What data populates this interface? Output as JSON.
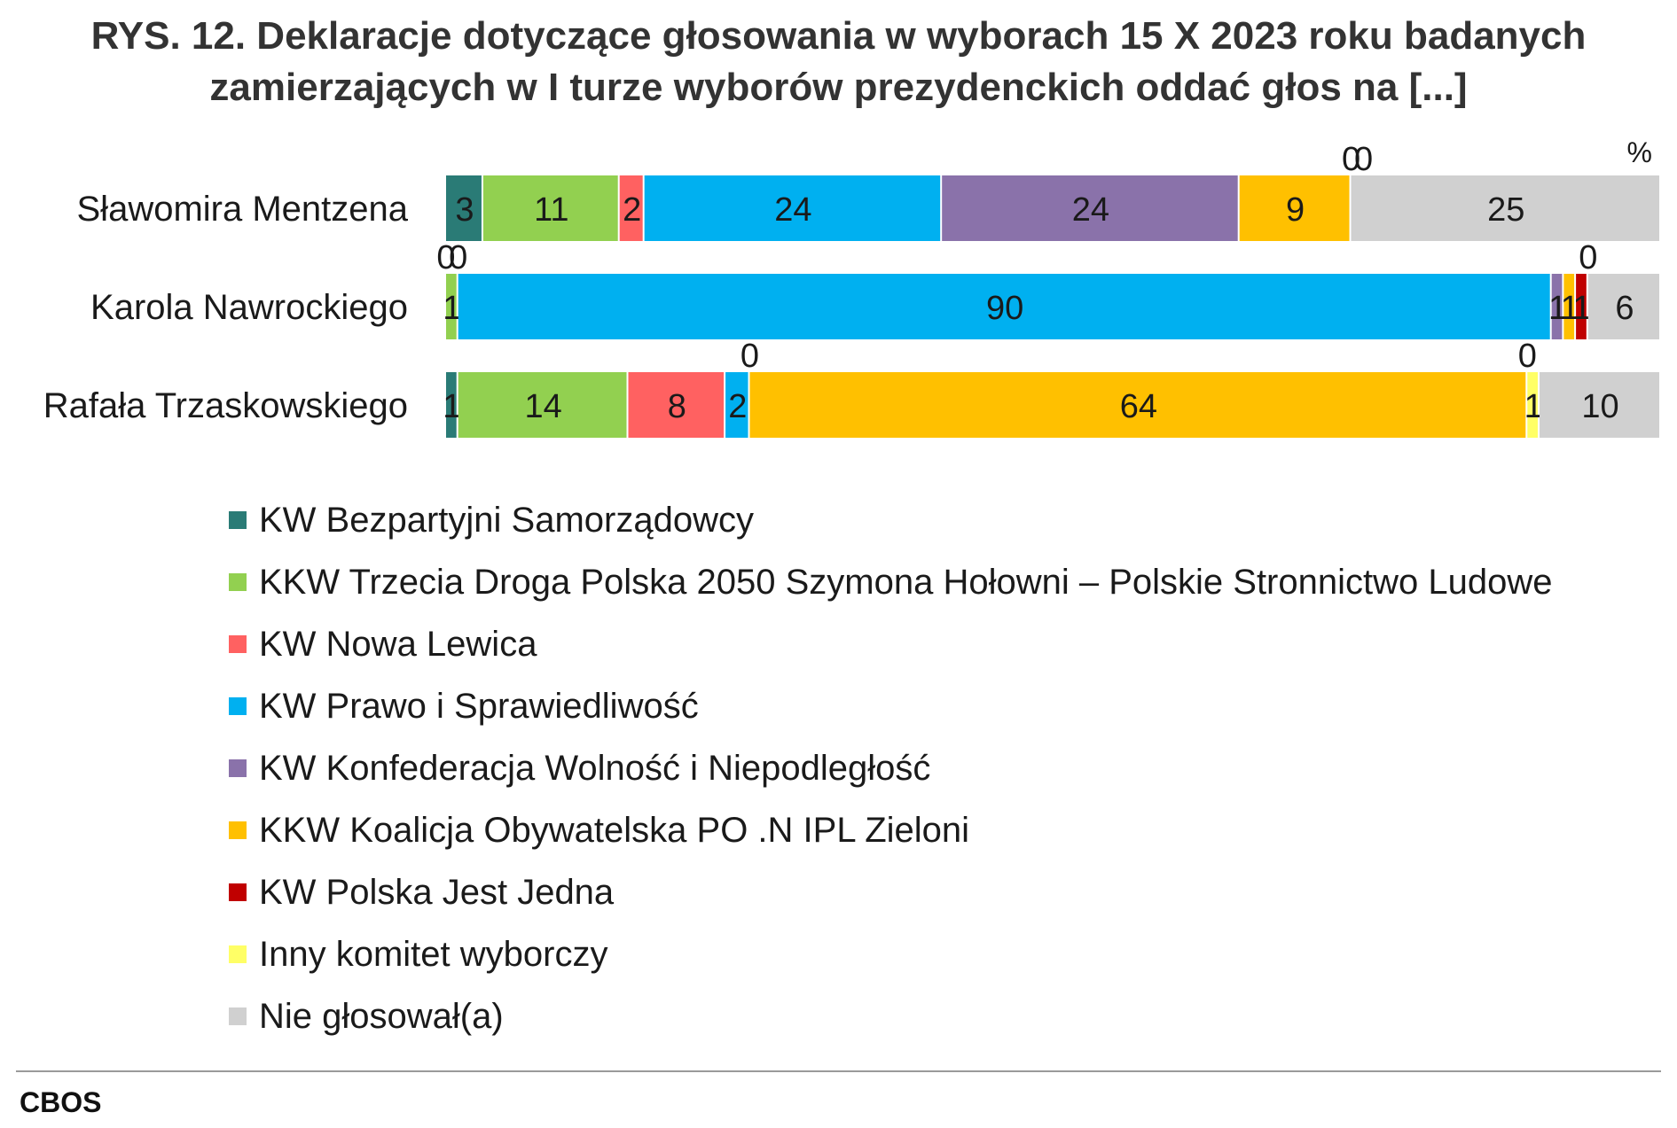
{
  "title": {
    "line1": "RYS. 12. Deklaracje dotyczące głosowania w wyborach 15 X 2023 roku badanych",
    "line2": "zamierzających w I turze wyborów prezydenckich oddać głos na [...]"
  },
  "source": "CBOS",
  "chart_data": {
    "type": "bar",
    "orientation": "horizontal",
    "stacked": true,
    "unit_label": "%",
    "xlim": [
      0,
      100
    ],
    "grid": false,
    "legend_position": "bottom",
    "categories": [
      "Sławomira Mentzena",
      "Karola Nawrockiego",
      "Rafała Trzaskowskiego"
    ],
    "series": [
      {
        "name": "KW Bezpartyjni Samorządowcy",
        "color": "#2a7b76",
        "values": [
          3,
          0,
          1
        ]
      },
      {
        "name": "KKW Trzecia Droga Polska 2050 Szymona Hołowni  – Polskie Stronnictwo Ludowe",
        "color": "#92d050",
        "values": [
          11,
          1,
          14
        ]
      },
      {
        "name": "KW Nowa Lewica",
        "color": "#ff6161",
        "values": [
          2,
          0,
          8
        ]
      },
      {
        "name": "KW Prawo i Sprawiedliwość",
        "color": "#00b0f0",
        "values": [
          24,
          90,
          2
        ]
      },
      {
        "name": "KW Konfederacja Wolność i Niepodległość",
        "color": "#8a72aa",
        "values": [
          24,
          1,
          0
        ]
      },
      {
        "name": "KKW Koalicja Obywatelska PO .N IPL Zieloni",
        "color": "#ffc000",
        "values": [
          9,
          1,
          64
        ]
      },
      {
        "name": "KW Polska Jest Jedna",
        "color": "#c00000",
        "values": [
          0,
          1,
          0
        ]
      },
      {
        "name": "Inny komitet wyborczy",
        "color": "#ffff66",
        "values": [
          0,
          0,
          1
        ]
      },
      {
        "name": "Nie głosował(a)",
        "color": "#d0d0d0",
        "values": [
          25,
          6,
          10
        ]
      }
    ]
  }
}
